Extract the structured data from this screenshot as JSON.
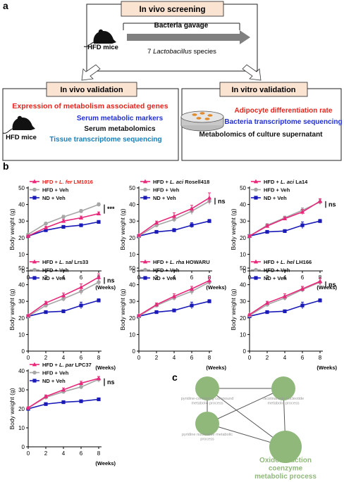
{
  "panel_a": {
    "label": "a",
    "screening": {
      "title": "In vivo screening",
      "gavage": "Bacteria gavage",
      "mouse_label": "HFD mice",
      "species_prefix": "7 ",
      "species_genus": "Lactobacillus",
      "species_suffix": " species"
    },
    "vivo_validation": {
      "title": "In vivo validation",
      "mouse_label": "HFD mice",
      "lines": [
        {
          "text": "Expression of metabolism associated genes",
          "color": "#e8231c"
        },
        {
          "text": "Serum metabolic markers",
          "color": "#1f2fd6"
        },
        {
          "text": "Serum metabolomics",
          "color": "#111111"
        },
        {
          "text": "Tissue transcriptome sequencing",
          "color": "#1a7fb8"
        }
      ]
    },
    "vitro_validation": {
      "title": "In vitro validation",
      "lines": [
        {
          "text": "Adipocyte differentiation rate",
          "color": "#e8231c"
        },
        {
          "text": "Bacteria transcriptome sequencing",
          "color": "#1f2fd6"
        },
        {
          "text": "Metabolomics of culture supernatant",
          "color": "#111111"
        }
      ]
    }
  },
  "panel_b": {
    "label": "b"
  },
  "panel_c": {
    "label": "c",
    "nodes": [
      {
        "label": "pyridine-containing compound metabolic process",
        "size": "small"
      },
      {
        "label": "nicotinamide nucleotide metabolic process",
        "size": "small"
      },
      {
        "label": "pyridine nucleotide metabolic process",
        "size": "small"
      },
      {
        "label": "Oxidoreduction coenzyme metabolic process",
        "size": "large"
      }
    ]
  },
  "colors": {
    "hfd_strain": "#e8287a",
    "hfd_veh": "#a6a6a6",
    "nd_veh": "#1a1ab8",
    "box_fill": "#fbe3d2",
    "arrow": "#808080",
    "node": "#8fb87a"
  },
  "chart_data": [
    {
      "type": "line",
      "title": "",
      "xlabel": "(Weeks)",
      "ylabel": "Body weight (g)",
      "x": [
        0,
        2,
        4,
        6,
        8
      ],
      "xlim": [
        0,
        8
      ],
      "ylim": [
        0,
        50
      ],
      "xticks": [
        "0",
        "2",
        "4",
        "6",
        "8"
      ],
      "yticks": [
        "0",
        "10",
        "20",
        "30",
        "40",
        "50"
      ],
      "legend": [
        {
          "prefix": "HFD + ",
          "species": "L. fer",
          "suffix": " LM1016"
        },
        {
          "prefix": "HFD + Veh"
        },
        {
          "prefix": "ND  + Veh"
        }
      ],
      "legend_text_color": "#e8231c",
      "significance": "***",
      "series": [
        {
          "name": "HFD + L. fer LM1016",
          "values": [
            21,
            26,
            30,
            32,
            34.5
          ],
          "err": [
            0.5,
            0.8,
            1,
            1,
            1
          ]
        },
        {
          "name": "HFD + Veh",
          "values": [
            22,
            28.5,
            32.5,
            36,
            40
          ],
          "err": [
            0.5,
            0.8,
            1,
            1,
            1
          ]
        },
        {
          "name": "ND + Veh",
          "values": [
            21,
            24.5,
            26.5,
            27.5,
            29.5
          ],
          "err": [
            0.5,
            0.6,
            0.6,
            0.7,
            0.7
          ]
        }
      ]
    },
    {
      "type": "line",
      "title": "",
      "xlabel": "(Weeks)",
      "ylabel": "Body weight (g)",
      "x": [
        0,
        2,
        4,
        6,
        8
      ],
      "xlim": [
        0,
        8
      ],
      "ylim": [
        0,
        50
      ],
      "xticks": [
        "0",
        "2",
        "4",
        "6",
        "8"
      ],
      "yticks": [
        "0",
        "10",
        "20",
        "30",
        "40",
        "50"
      ],
      "legend": [
        {
          "prefix": "HFD + ",
          "species": "L. aci",
          "suffix": " Rosell418"
        },
        {
          "prefix": "HFD + Veh"
        },
        {
          "prefix": "ND  + Veh"
        }
      ],
      "legend_text_color": "#111111",
      "significance": "ns",
      "series": [
        {
          "name": "HFD + L. aci Rosell418",
          "values": [
            21.5,
            29,
            33,
            37.5,
            44
          ],
          "err": [
            0.5,
            1,
            2,
            2,
            3
          ]
        },
        {
          "name": "HFD + Veh",
          "values": [
            21,
            27.5,
            31,
            36,
            42
          ],
          "err": [
            0.5,
            1,
            1.5,
            2,
            2
          ]
        },
        {
          "name": "ND + Veh",
          "values": [
            21,
            23.5,
            24.5,
            27.5,
            30
          ],
          "err": [
            0.5,
            0.8,
            1,
            1.5,
            1
          ]
        }
      ]
    },
    {
      "type": "line",
      "title": "",
      "xlabel": "(Weeks)",
      "ylabel": "Body weight (g)",
      "x": [
        0,
        2,
        4,
        6,
        8
      ],
      "xlim": [
        0,
        8
      ],
      "ylim": [
        0,
        50
      ],
      "xticks": [
        "0",
        "2",
        "4",
        "6",
        "8"
      ],
      "yticks": [
        "0",
        "10",
        "20",
        "30",
        "40",
        "50"
      ],
      "legend": [
        {
          "prefix": "HFD + ",
          "species": "L. aci",
          "suffix": " La14"
        },
        {
          "prefix": "HFD + Veh"
        },
        {
          "prefix": "ND  + Veh"
        }
      ],
      "legend_text_color": "#111111",
      "significance": "ns",
      "series": [
        {
          "name": "HFD + L. aci La14",
          "values": [
            21,
            27,
            31.5,
            35.5,
            42
          ],
          "err": [
            0.5,
            1,
            1,
            1.5,
            1.5
          ]
        },
        {
          "name": "HFD + Veh",
          "values": [
            21,
            27.5,
            32,
            36.5,
            41.5
          ],
          "err": [
            0.5,
            1,
            1,
            1.5,
            1.5
          ]
        },
        {
          "name": "ND + Veh",
          "values": [
            21,
            23.5,
            24,
            27.5,
            30
          ],
          "err": [
            0.5,
            0.8,
            0.8,
            2,
            1
          ]
        }
      ]
    },
    {
      "type": "line",
      "title": "",
      "xlabel": "(Weeks)",
      "ylabel": "Body weight (g)",
      "x": [
        0,
        2,
        4,
        6,
        8
      ],
      "xlim": [
        0,
        8
      ],
      "ylim": [
        0,
        50
      ],
      "xticks": [
        "0",
        "2",
        "4",
        "6",
        "8"
      ],
      "yticks": [
        "0",
        "10",
        "20",
        "30",
        "40",
        "50"
      ],
      "legend": [
        {
          "prefix": "HFD + ",
          "species": "L. sal",
          "suffix": " Lrs33"
        },
        {
          "prefix": "HFD + Veh"
        },
        {
          "prefix": "ND  + Veh"
        }
      ],
      "legend_text_color": "#111111",
      "significance": "ns",
      "series": [
        {
          "name": "HFD + L. sal Lrs33",
          "values": [
            21.5,
            29,
            33.5,
            38.5,
            44.5
          ],
          "err": [
            0.5,
            1,
            1.5,
            2,
            2
          ]
        },
        {
          "name": "HFD + Veh",
          "values": [
            21,
            27.5,
            31.5,
            36,
            41.5
          ],
          "err": [
            0.5,
            1,
            1.5,
            2,
            2
          ]
        },
        {
          "name": "ND + Veh",
          "values": [
            21,
            23.5,
            24,
            27.5,
            30.5
          ],
          "err": [
            0.5,
            0.8,
            0.8,
            2,
            1
          ]
        }
      ]
    },
    {
      "type": "line",
      "title": "",
      "xlabel": "(Weeks)",
      "ylabel": "Body weight (g)",
      "x": [
        0,
        2,
        4,
        6,
        8
      ],
      "xlim": [
        0,
        8
      ],
      "ylim": [
        0,
        50
      ],
      "xticks": [
        "0",
        "2",
        "4",
        "6",
        "8"
      ],
      "yticks": [
        "0",
        "10",
        "20",
        "30",
        "40",
        "50"
      ],
      "legend": [
        {
          "prefix": "HFD + ",
          "species": "L. rha",
          "suffix": " HOWARU"
        },
        {
          "prefix": "HFD + Veh"
        },
        {
          "prefix": "ND  + Veh"
        }
      ],
      "legend_text_color": "#111111",
      "significance": "",
      "series": [
        {
          "name": "HFD + L. rha HOWARU",
          "values": [
            21.5,
            28,
            33,
            37.5,
            42.5
          ],
          "err": [
            0.5,
            1,
            1.5,
            1.5,
            2
          ]
        },
        {
          "name": "HFD + Veh",
          "values": [
            21,
            27.5,
            32,
            36,
            41.5
          ],
          "err": [
            0.5,
            1,
            1.5,
            2,
            2
          ]
        },
        {
          "name": "ND + Veh",
          "values": [
            21,
            23.5,
            24.5,
            27.5,
            30
          ],
          "err": [
            0.5,
            0.8,
            0.8,
            2,
            1
          ]
        }
      ]
    },
    {
      "type": "line",
      "title": "",
      "xlabel": "(Weeks)",
      "ylabel": "Body weight (g)",
      "x": [
        0,
        2,
        4,
        6,
        8
      ],
      "xlim": [
        0,
        8
      ],
      "ylim": [
        0,
        50
      ],
      "xticks": [
        "0",
        "2",
        "4",
        "6",
        "8"
      ],
      "yticks": [
        "0",
        "10",
        "20",
        "30",
        "40",
        "50"
      ],
      "legend": [
        {
          "prefix": "HFD + ",
          "species": "L. hel",
          "suffix": " LH166"
        },
        {
          "prefix": "HFD + Veh"
        },
        {
          "prefix": "ND  + Veh"
        }
      ],
      "legend_text_color": "#111111",
      "significance": "ns",
      "series": [
        {
          "name": "HFD + L. hel LH166",
          "values": [
            22,
            29,
            33,
            37.5,
            42
          ],
          "err": [
            0.5,
            1,
            1.5,
            1.5,
            2
          ]
        },
        {
          "name": "HFD + Veh",
          "values": [
            21.5,
            28,
            32,
            37,
            41.5
          ],
          "err": [
            0.5,
            1,
            1.5,
            1.5,
            2
          ]
        },
        {
          "name": "ND + Veh",
          "values": [
            21,
            23.5,
            24,
            27.5,
            30.5
          ],
          "err": [
            0.5,
            0.8,
            0.8,
            2,
            1
          ]
        }
      ]
    },
    {
      "type": "line",
      "title": "",
      "xlabel": "(Weeks)",
      "ylabel": "Body weight (g)",
      "x": [
        0,
        2,
        4,
        6,
        8
      ],
      "xlim": [
        0,
        8
      ],
      "ylim": [
        0,
        40
      ],
      "xticks": [
        "0",
        "2",
        "4",
        "6",
        "8"
      ],
      "yticks": [
        "0",
        "10",
        "20",
        "30",
        "40"
      ],
      "legend": [
        {
          "prefix": "HFD + ",
          "species": "L. par",
          "suffix": " LPC37"
        },
        {
          "prefix": "HFD + Veh"
        },
        {
          "prefix": "ND  + Veh"
        }
      ],
      "legend_text_color": "#111111",
      "significance": "ns",
      "series": [
        {
          "name": "HFD + L. par LPC37",
          "values": [
            20.5,
            26.5,
            30,
            33.5,
            36
          ],
          "err": [
            0.5,
            0.8,
            1,
            1,
            1
          ]
        },
        {
          "name": "HFD + Veh",
          "values": [
            20.5,
            26,
            29,
            31.5,
            35.5
          ],
          "err": [
            0.5,
            0.8,
            1,
            1,
            1.5
          ]
        },
        {
          "name": "ND + Veh",
          "values": [
            20,
            22.5,
            23.5,
            24,
            25
          ],
          "err": [
            0.5,
            0.5,
            0.5,
            0.5,
            0.5
          ]
        }
      ]
    }
  ]
}
